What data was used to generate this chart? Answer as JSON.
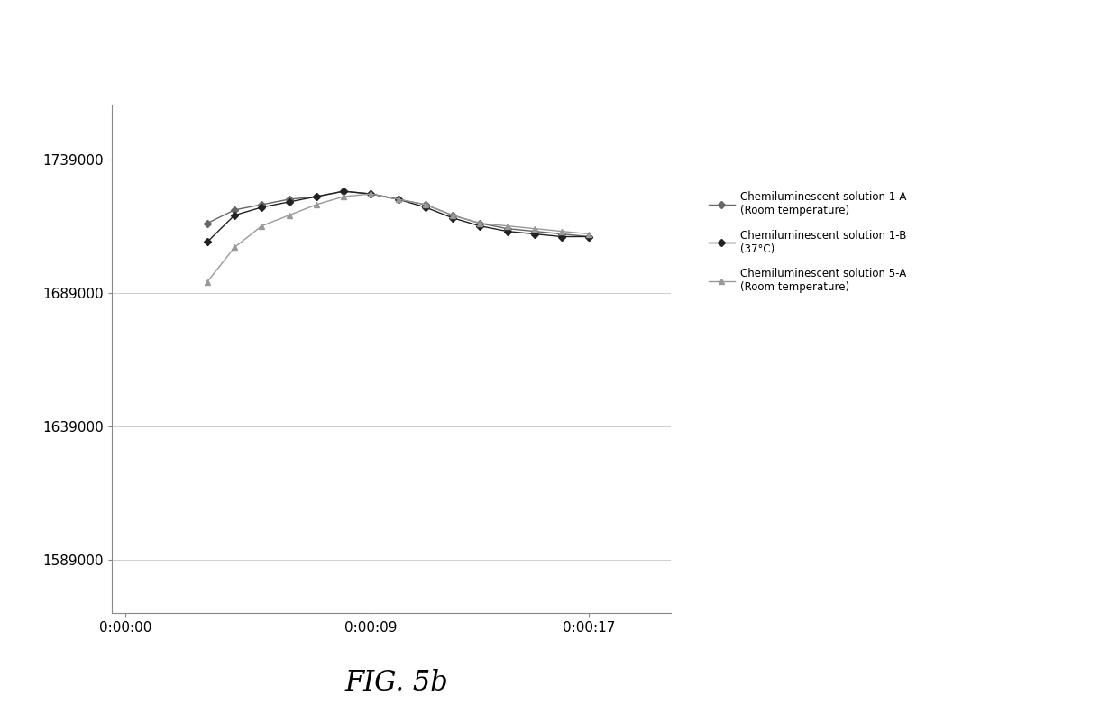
{
  "title": "FIG. 5b",
  "series": [
    {
      "label": "Chemiluminescent solution 1-A\n(Room temperature)",
      "color": "#666666",
      "marker": "D",
      "markersize": 4,
      "linewidth": 1.0,
      "x": [
        3,
        4,
        5,
        6,
        7,
        8,
        9,
        10,
        11,
        12,
        13,
        14,
        15,
        16,
        17
      ],
      "y": [
        1715000,
        1720000,
        1722000,
        1724000,
        1725000,
        1727000,
        1726000,
        1724000,
        1722000,
        1718000,
        1715000,
        1713000,
        1712000,
        1711000,
        1710000
      ]
    },
    {
      "label": "Chemiluminescent solution 1-B\n(37°C)",
      "color": "#222222",
      "marker": "D",
      "markersize": 4,
      "linewidth": 1.0,
      "x": [
        3,
        4,
        5,
        6,
        7,
        8,
        9,
        10,
        11,
        12,
        13,
        14,
        15,
        16,
        17
      ],
      "y": [
        1708000,
        1718000,
        1721000,
        1723000,
        1725000,
        1727000,
        1726000,
        1724000,
        1721000,
        1717000,
        1714000,
        1712000,
        1711000,
        1710000,
        1710000
      ]
    },
    {
      "label": "Chemiluminescent solution 5-A\n(Room temperature)",
      "color": "#999999",
      "marker": "^",
      "markersize": 4,
      "linewidth": 1.0,
      "x": [
        3,
        4,
        5,
        6,
        7,
        8,
        9,
        10,
        11,
        12,
        13,
        14,
        15,
        16,
        17
      ],
      "y": [
        1693000,
        1706000,
        1714000,
        1718000,
        1722000,
        1725000,
        1726000,
        1724000,
        1722000,
        1718000,
        1715000,
        1714000,
        1713000,
        1712000,
        1711000
      ]
    }
  ],
  "yticks": [
    1589000,
    1639000,
    1689000,
    1739000
  ],
  "ylim": [
    1569000,
    1759000
  ],
  "xticks_seconds": [
    0,
    9,
    17
  ],
  "xtick_labels": [
    "0:00:00",
    "0:00:09",
    "0:00:17"
  ],
  "xlim_seconds": [
    -0.5,
    20
  ],
  "background_color": "#ffffff",
  "grid_color": "#aaaaaa",
  "legend_fontsize": 8.5,
  "tick_fontsize": 11
}
